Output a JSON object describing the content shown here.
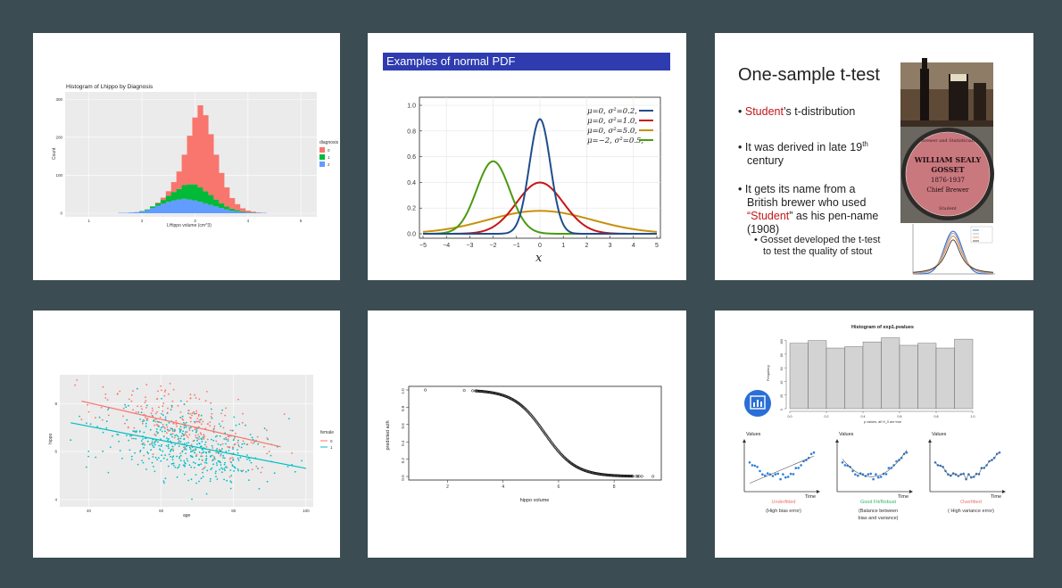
{
  "slides": {
    "s1": {
      "title": "Histogram of Lhippo by Diagnosis",
      "ylabel": "Count",
      "xlabel": "LHippo volume (cm^3)",
      "legend_title": "diagnosis",
      "legend": [
        "0",
        "1",
        "2"
      ],
      "colors": {
        "d0": "#f8766d",
        "d1": "#00ba38",
        "d2": "#619cff"
      },
      "yticks": [
        "0",
        "100",
        "200",
        "300"
      ],
      "xticks": [
        "1",
        "2",
        "3",
        "4",
        "5"
      ]
    },
    "s2": {
      "banner": "Examples of normal PDF",
      "legend": [
        "μ=0,   σ²=0.2,",
        "μ=0,   σ²=1.0,",
        "μ=0,   σ²=5.0,",
        "μ=−2,  σ²=0.5,"
      ],
      "colors": {
        "a": "#1f4e8c",
        "b": "#c81414",
        "c": "#c8900a",
        "d": "#4a9a12"
      },
      "xlabel": "x",
      "yticks": [
        "0.0",
        "0.2",
        "0.4",
        "0.6",
        "0.8",
        "1.0"
      ],
      "xticks": [
        "−5",
        "−4",
        "−3",
        "−2",
        "−1",
        "0",
        "1",
        "2",
        "3",
        "4",
        "5"
      ]
    },
    "s3": {
      "title": "One-sample t-test",
      "b1_pre": "• ",
      "b1_red": "Student",
      "b1_post": "’s t-distribution",
      "b2": "• It was derived in late 19",
      "b2_sup": "th",
      "b2_end": "century",
      "b3a": "• It gets its name from a",
      "b3b": "British brewer who used",
      "b3_q1": "“",
      "b3_red": "Student",
      "b3_q2": "” as his pen-name",
      "b3c": "(1908)",
      "sub1": "• Gosset developed the t-test",
      "sub2": "to test the quality of stout",
      "plaque": [
        "WILLIAM SEALY",
        "GOSSET",
        "1876-1937",
        "Chief Brewer"
      ],
      "plaque_top": "Brewer and Statistician",
      "plaque_bottom": "Student"
    },
    "s4": {
      "ylabel": "hippo",
      "xlabel": "age",
      "legend_title": "female",
      "legend": [
        "0",
        "1"
      ],
      "colors": {
        "f0": "#f8766d",
        "f1": "#00bfc4"
      },
      "xticks": [
        "40",
        "60",
        "80",
        "100"
      ],
      "yticks": [
        "4",
        "6",
        "8"
      ]
    },
    "s5": {
      "ylabel": "predicted azh",
      "xlabel": "hippo volume",
      "yticks": [
        "0.0",
        "0.2",
        "0.4",
        "0.6",
        "0.8",
        "1.0"
      ],
      "xticks": [
        "2",
        "4",
        "6",
        "8"
      ]
    },
    "s6": {
      "hist_title": "Histogram of exp1.pvalues",
      "hist_ylabel": "Frequency",
      "hist_xlabel": "p values, all H_0 are true",
      "hist_yticks": [
        "0",
        "20",
        "40",
        "60",
        "80",
        "100"
      ],
      "hist_xticks": [
        "0.0",
        "0.2",
        "0.4",
        "0.6",
        "0.8",
        "1.0"
      ],
      "panels": [
        {
          "ylabel": "Values",
          "xlabel": "Time",
          "caption": "Underfitted",
          "caption2": "(High bias error)",
          "caption3": "",
          "color": "#e8736a"
        },
        {
          "ylabel": "Values",
          "xlabel": "Time",
          "caption": "Good Fit/Robust",
          "caption2": "(Balance between",
          "caption3": "bias and variance)",
          "color": "#2fb36a"
        },
        {
          "ylabel": "Values",
          "xlabel": "Time",
          "caption": "Overfitted",
          "caption2": "( High variance error)",
          "caption3": "",
          "color": "#e8736a"
        }
      ]
    }
  },
  "chart_data": [
    {
      "type": "bar",
      "title": "Histogram of Lhippo by Diagnosis",
      "xlabel": "LHippo volume (cm^3)",
      "ylabel": "Count",
      "stacked": true,
      "x": [
        1.0,
        1.1,
        1.2,
        1.3,
        1.4,
        1.5,
        1.6,
        1.7,
        1.8,
        1.9,
        2.0,
        2.1,
        2.2,
        2.3,
        2.4,
        2.5,
        2.6,
        2.7,
        2.8,
        2.9,
        3.0,
        3.1,
        3.2,
        3.3,
        3.4,
        3.5,
        3.6,
        3.7,
        3.8,
        3.9,
        4.0,
        4.1,
        4.2,
        4.3,
        4.4,
        4.5,
        4.6,
        4.7,
        4.8,
        4.9,
        5.0
      ],
      "series": [
        {
          "name": "2",
          "values": [
            0,
            0,
            0,
            0,
            0,
            0,
            1,
            1,
            2,
            3,
            5,
            8,
            14,
            20,
            25,
            30,
            34,
            36,
            38,
            36,
            34,
            30,
            26,
            22,
            18,
            14,
            10,
            7,
            5,
            3,
            2,
            1,
            1,
            1,
            0,
            0,
            0,
            0,
            0,
            0,
            0
          ]
        },
        {
          "name": "1",
          "values": [
            0,
            0,
            0,
            0,
            0,
            0,
            0,
            0,
            0,
            0,
            1,
            2,
            4,
            6,
            10,
            16,
            22,
            28,
            36,
            40,
            42,
            38,
            32,
            26,
            18,
            12,
            8,
            5,
            3,
            2,
            1,
            1,
            0,
            0,
            0,
            0,
            0,
            0,
            0,
            0,
            0
          ]
        },
        {
          "name": "0",
          "values": [
            0,
            0,
            0,
            0,
            0,
            0,
            0,
            0,
            0,
            0,
            0,
            0,
            0,
            2,
            6,
            12,
            26,
            46,
            80,
            128,
            176,
            216,
            200,
            160,
            118,
            80,
            50,
            28,
            16,
            8,
            4,
            2,
            1,
            0,
            0,
            0,
            0,
            0,
            0,
            0,
            0
          ]
        }
      ],
      "ylim": [
        0,
        310
      ]
    },
    {
      "type": "line",
      "xlabel": "x",
      "xlim": [
        -5,
        5
      ],
      "ylim": [
        0,
        1.0
      ],
      "series": [
        {
          "name": "μ=0, σ²=0.2",
          "mu": 0,
          "var": 0.2
        },
        {
          "name": "μ=0, σ²=1.0",
          "mu": 0,
          "var": 1.0
        },
        {
          "name": "μ=0, σ²=5.0",
          "mu": 0,
          "var": 5.0
        },
        {
          "name": "μ=−2, σ²=0.5",
          "mu": -2,
          "var": 0.5
        }
      ]
    },
    {
      "type": "scatter",
      "xlabel": "age",
      "ylabel": "hippo",
      "xlim": [
        32,
        102
      ],
      "ylim": [
        3.7,
        9.2
      ],
      "lines": [
        {
          "name": "0",
          "x": [
            38,
            93
          ],
          "y": [
            8.1,
            6.2
          ]
        },
        {
          "name": "1",
          "x": [
            35,
            100
          ],
          "y": [
            7.2,
            5.3
          ]
        }
      ]
    },
    {
      "type": "scatter",
      "xlabel": "hippo volume",
      "ylabel": "predicted azh",
      "xlim": [
        0.6,
        9.7
      ],
      "ylim": [
        0,
        1.0
      ],
      "curve": "logistic",
      "midpoint": 5.5,
      "slope": 1.8
    },
    {
      "type": "bar",
      "title": "Histogram of exp1.pvalues",
      "xlabel": "p values, all H_0 are true",
      "ylabel": "Frequency",
      "bins": [
        0.0,
        0.1,
        0.2,
        0.3,
        0.4,
        0.5,
        0.6,
        0.7,
        0.8,
        0.9
      ],
      "values": [
        96,
        100,
        89,
        91,
        98,
        104,
        93,
        96,
        89,
        102
      ],
      "ylim": [
        0,
        110
      ]
    }
  ]
}
